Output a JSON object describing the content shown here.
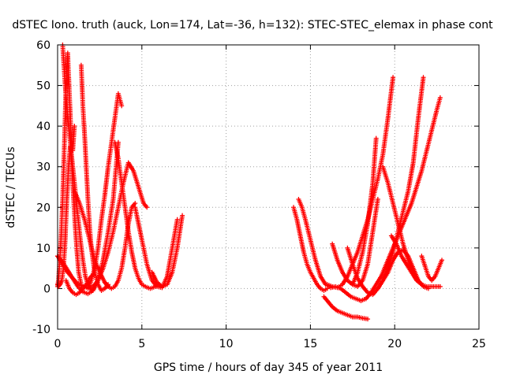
{
  "chart_data": {
    "type": "scatter",
    "title": "dSTEC Iono. truth (auck, Lon=174, Lat=-36, h=132): STEC-STEC_elemax in phase cont",
    "xlabel": "GPS time / hours of day 345 of year 2011",
    "ylabel": "dSTEC  / TECUs",
    "xlim": [
      0,
      25
    ],
    "ylim": [
      -10,
      60
    ],
    "x_ticks": [
      0,
      5,
      10,
      15,
      20,
      25
    ],
    "y_ticks": [
      -10,
      0,
      10,
      20,
      30,
      40,
      50,
      60
    ],
    "grid": true,
    "legend": "none",
    "marker": "plus",
    "color": "#ff0000",
    "series": [
      {
        "x": [
          0.0,
          0.05,
          0.15,
          0.25,
          0.35,
          0.45,
          0.55,
          0.65,
          0.75,
          0.85,
          0.95,
          1.05,
          1.15,
          1.25,
          1.4
        ],
        "y": [
          1,
          0.5,
          1,
          2,
          5,
          12,
          22,
          30,
          35,
          30,
          22,
          15,
          9,
          4,
          1
        ]
      },
      {
        "x": [
          0.0,
          0.05,
          0.1,
          0.2,
          0.3,
          0.4,
          0.5,
          0.6,
          0.7,
          0.8,
          0.9,
          1.0
        ],
        "y": [
          0.5,
          2,
          5,
          12,
          22,
          35,
          50,
          58,
          48,
          38,
          34,
          40
        ]
      },
      {
        "x": [
          0.3,
          0.45,
          0.6,
          0.75,
          0.9,
          1.05,
          1.2,
          1.35,
          1.5,
          1.65,
          1.8,
          1.95,
          2.05
        ],
        "y": [
          60,
          50,
          42,
          36,
          30,
          24,
          18,
          12,
          7,
          3,
          1,
          0,
          -0.5
        ]
      },
      {
        "x": [
          0.0,
          0.3,
          0.6,
          0.9,
          1.2,
          1.5,
          1.8,
          2.1,
          2.4,
          2.7,
          3.0,
          3.3,
          3.6,
          3.9,
          4.2,
          4.5,
          4.8,
          5.1,
          5.3
        ],
        "y": [
          8,
          6,
          4,
          2.5,
          1.2,
          0.5,
          0.2,
          0.5,
          2,
          5,
          9,
          14,
          20,
          26,
          31,
          29,
          25,
          21,
          20
        ]
      },
      {
        "x": [
          0.0,
          0.3,
          0.6,
          0.9,
          1.2,
          1.5,
          1.8,
          2.1,
          2.4,
          2.7,
          3.0,
          3.3,
          3.6
        ],
        "y": [
          8,
          6.5,
          4.5,
          2.5,
          0.5,
          -0.8,
          -1.3,
          -0.5,
          2,
          7,
          14,
          22,
          36
        ]
      },
      {
        "x": [
          0.5,
          0.7,
          0.9,
          1.1,
          1.3,
          1.5,
          1.7,
          1.9,
          2.1
        ],
        "y": [
          2,
          0,
          -1,
          -1.5,
          -1,
          0,
          1,
          2.5,
          3.5
        ]
      },
      {
        "x": [
          1.4,
          1.5,
          1.6,
          1.7,
          1.8,
          1.9,
          2.0,
          2.2,
          2.4,
          2.6,
          2.8,
          3.0
        ],
        "y": [
          55,
          45,
          38,
          30,
          22,
          15,
          10,
          4,
          1,
          -0.5,
          0,
          1
        ]
      },
      {
        "x": [
          1.8,
          2.0,
          2.2,
          2.4,
          2.6,
          2.8,
          3.0,
          3.2,
          3.4,
          3.6,
          3.8
        ],
        "y": [
          0,
          2,
          5,
          10,
          17,
          23,
          30,
          36,
          42,
          48,
          45
        ]
      },
      {
        "x": [
          1.0,
          1.3,
          1.6,
          1.9,
          2.2,
          2.5,
          2.8,
          3.0
        ],
        "y": [
          24,
          21,
          17,
          12,
          7,
          4,
          1.5,
          0.5
        ]
      },
      {
        "x": [
          3.4,
          3.6,
          3.8,
          4.0,
          4.2,
          4.4,
          4.6,
          4.8,
          5.0,
          5.2,
          5.5,
          5.8,
          6.0
        ],
        "y": [
          36,
          32,
          26,
          20,
          14,
          9,
          5,
          2.5,
          1,
          0.5,
          0,
          0.5,
          1
        ]
      },
      {
        "x": [
          2.8,
          3.0,
          3.2,
          3.4,
          3.6,
          3.8,
          4.0,
          4.2,
          4.4,
          4.6
        ],
        "y": [
          1.5,
          0.5,
          0,
          0.5,
          2,
          5,
          10,
          16,
          20,
          21
        ]
      },
      {
        "x": [
          4.6,
          4.8,
          5.0,
          5.3,
          5.6,
          5.9,
          6.2,
          6.5,
          6.8,
          7.1
        ],
        "y": [
          20,
          16,
          12,
          6,
          2,
          0.5,
          0.2,
          3,
          10,
          17
        ]
      },
      {
        "x": [
          5.6,
          5.9,
          6.2,
          6.5,
          6.8,
          7.1,
          7.4
        ],
        "y": [
          4,
          1.5,
          0.5,
          1,
          4,
          10,
          18
        ]
      },
      {
        "x": [
          14.0,
          14.2,
          14.4,
          14.6,
          14.8,
          15.0,
          15.2,
          15.4,
          15.6,
          15.8,
          16.0
        ],
        "y": [
          20,
          17,
          13,
          9,
          6,
          4,
          2.5,
          1,
          0,
          -0.5,
          0
        ]
      },
      {
        "x": [
          14.3,
          14.5,
          14.7,
          15.0,
          15.3,
          15.6,
          15.9,
          16.2,
          16.5,
          16.8,
          17.1,
          17.4,
          17.7,
          18.0
        ],
        "y": [
          22,
          20,
          17,
          12,
          7,
          3,
          1,
          0.2,
          0.5,
          0,
          -1,
          -2,
          -2.5,
          -3
        ]
      },
      {
        "x": [
          16.0,
          16.3,
          16.6,
          16.9,
          17.2,
          17.5,
          17.8,
          18.1,
          18.4,
          18.7,
          19.0,
          19.3,
          19.6,
          19.9
        ],
        "y": [
          1,
          0.5,
          0.2,
          1,
          3,
          6,
          9,
          13,
          17,
          22,
          27,
          33,
          42,
          52
        ]
      },
      {
        "x": [
          15.8,
          16.0,
          16.3,
          16.6,
          16.9,
          17.2,
          17.5,
          17.8,
          18.1,
          18.4
        ],
        "y": [
          -2,
          -3,
          -4.5,
          -5.5,
          -6,
          -6.5,
          -7,
          -7,
          -7.3,
          -7.5
        ]
      },
      {
        "x": [
          16.3,
          16.6,
          16.9,
          17.2,
          17.5,
          17.8,
          18.1,
          18.4,
          18.7,
          19.0
        ],
        "y": [
          11,
          7,
          4,
          2,
          1,
          0.5,
          2,
          6,
          14,
          22
        ]
      },
      {
        "x": [
          17.5,
          17.8,
          18.1,
          18.4,
          18.7,
          18.9
        ],
        "y": [
          1,
          4,
          9,
          16,
          26,
          37
        ]
      },
      {
        "x": [
          17.2,
          17.5,
          17.8,
          18.1,
          18.4,
          18.7,
          19.0,
          19.3,
          19.6,
          19.9,
          20.2,
          20.5,
          20.8,
          21.1,
          21.4,
          21.7
        ],
        "y": [
          10,
          6,
          2.5,
          0.5,
          -1,
          -1.5,
          0,
          2,
          5,
          9,
          14,
          19,
          24,
          31,
          42,
          52
        ]
      },
      {
        "x": [
          19.3,
          19.6,
          19.9,
          20.2,
          20.5,
          20.8,
          21.1,
          21.4,
          21.7,
          22.0
        ],
        "y": [
          30,
          26,
          21,
          16,
          11,
          7,
          4,
          2,
          0.5,
          0
        ]
      },
      {
        "x": [
          18.0,
          18.3,
          18.6,
          18.9,
          19.2,
          19.5,
          19.8,
          20.1,
          20.4,
          20.7,
          21.0,
          21.3,
          21.6,
          21.9,
          22.2,
          22.5,
          22.7
        ],
        "y": [
          -3,
          -2.5,
          -1,
          1,
          3,
          6,
          9,
          12,
          15,
          18,
          21,
          25,
          29,
          34,
          39,
          44,
          47
        ]
      },
      {
        "x": [
          19.8,
          20.1,
          20.4,
          20.7,
          21.0,
          21.3,
          21.6,
          21.9,
          22.2,
          22.5,
          22.7
        ],
        "y": [
          13,
          11,
          8,
          6,
          4,
          2,
          1,
          0.5,
          0.5,
          0.5,
          0.5
        ]
      },
      {
        "x": [
          19.0,
          19.3,
          19.6,
          19.9,
          20.2,
          20.5,
          20.8,
          21.1,
          21.4
        ],
        "y": [
          0,
          2,
          4,
          7,
          9,
          9.5,
          8,
          5,
          2
        ]
      },
      {
        "x": [
          21.6,
          21.8,
          22.0,
          22.2,
          22.4,
          22.6,
          22.8
        ],
        "y": [
          8,
          5.5,
          3,
          2,
          3,
          5,
          7
        ]
      }
    ]
  }
}
